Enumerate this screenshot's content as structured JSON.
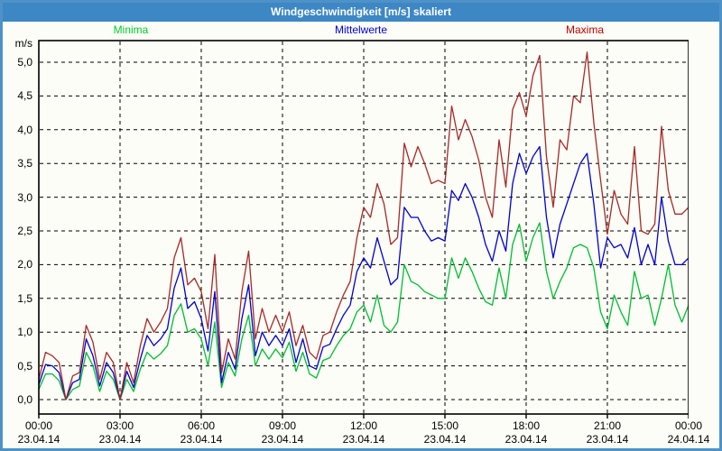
{
  "window": {
    "title": "Windgeschwindigkeit [m/s] skaliert"
  },
  "legend": [
    {
      "label": "Minima",
      "color": "#00cc33"
    },
    {
      "label": "Mittelwerte",
      "color": "#0000e6"
    },
    {
      "label": "Maxima",
      "color": "#c00000"
    }
  ],
  "chart_data": {
    "type": "line",
    "title": "Windgeschwindigkeit [m/s] skaliert",
    "ylabel": "m/s",
    "ylim": [
      0.0,
      5.0
    ],
    "y_tick_step": 0.5,
    "y_tick_labels": [
      "0,0",
      "0,5",
      "1,0",
      "1,5",
      "2,0",
      "2,5",
      "3,0",
      "3,5",
      "4,0",
      "4,5",
      "5,0"
    ],
    "grid": "dashed",
    "legend_position": "top",
    "x_hours_range": [
      0,
      24
    ],
    "sample_interval_minutes": 15,
    "x_ticks": [
      {
        "hour": 0,
        "time": "00:00",
        "date": "23.04.14"
      },
      {
        "hour": 3,
        "time": "03:00",
        "date": "23.04.14"
      },
      {
        "hour": 6,
        "time": "06:00",
        "date": "23.04.14"
      },
      {
        "hour": 9,
        "time": "09:00",
        "date": "23.04.14"
      },
      {
        "hour": 12,
        "time": "12:00",
        "date": "23.04.14"
      },
      {
        "hour": 15,
        "time": "15:00",
        "date": "23.04.14"
      },
      {
        "hour": 18,
        "time": "18:00",
        "date": "23.04.14"
      },
      {
        "hour": 21,
        "time": "21:00",
        "date": "23.04.14"
      },
      {
        "hour": 24,
        "time": "00:00",
        "date": "24.04.14"
      }
    ],
    "series": [
      {
        "name": "Minima",
        "color": "#00bd32",
        "values": [
          0.15,
          0.38,
          0.38,
          0.28,
          0.0,
          0.15,
          0.2,
          0.7,
          0.5,
          0.12,
          0.42,
          0.3,
          0.0,
          0.3,
          0.12,
          0.45,
          0.7,
          0.6,
          0.68,
          0.8,
          1.25,
          1.42,
          1.0,
          1.05,
          0.9,
          0.5,
          1.15,
          0.18,
          0.55,
          0.35,
          0.9,
          1.25,
          0.5,
          0.75,
          0.6,
          0.75,
          0.62,
          0.85,
          0.42,
          0.7,
          0.38,
          0.32,
          0.58,
          0.62,
          0.8,
          0.95,
          1.05,
          1.3,
          1.4,
          1.15,
          1.55,
          1.1,
          1.0,
          1.15,
          2.0,
          1.75,
          1.7,
          1.6,
          1.55,
          1.5,
          1.5,
          2.1,
          1.8,
          2.1,
          1.9,
          1.65,
          1.45,
          1.4,
          1.95,
          1.5,
          2.3,
          2.6,
          2.05,
          2.4,
          2.62,
          1.9,
          1.5,
          1.75,
          1.95,
          2.25,
          2.3,
          2.25,
          1.95,
          1.3,
          1.05,
          1.55,
          1.3,
          1.1,
          1.9,
          1.5,
          1.55,
          1.1,
          1.5,
          2.0,
          1.4,
          1.15,
          1.4
        ]
      },
      {
        "name": "Mittelwerte",
        "color": "#0000cd",
        "values": [
          0.22,
          0.52,
          0.5,
          0.4,
          0.0,
          0.25,
          0.3,
          0.9,
          0.65,
          0.2,
          0.55,
          0.4,
          0.0,
          0.42,
          0.18,
          0.6,
          0.95,
          0.8,
          0.9,
          1.05,
          1.65,
          1.95,
          1.35,
          1.45,
          1.2,
          0.72,
          1.6,
          0.25,
          0.7,
          0.45,
          1.2,
          1.7,
          0.65,
          1.0,
          0.8,
          0.95,
          0.8,
          1.05,
          0.55,
          0.9,
          0.5,
          0.45,
          0.78,
          0.82,
          1.05,
          1.25,
          1.4,
          1.9,
          2.1,
          1.95,
          2.4,
          2.05,
          1.7,
          1.8,
          2.85,
          2.7,
          2.7,
          2.5,
          2.35,
          2.4,
          2.35,
          3.1,
          2.95,
          3.2,
          3.0,
          2.7,
          2.3,
          2.05,
          2.5,
          2.2,
          3.2,
          3.65,
          3.35,
          3.6,
          3.75,
          2.7,
          2.1,
          2.6,
          2.9,
          3.2,
          3.5,
          3.65,
          2.9,
          1.95,
          2.4,
          2.25,
          2.3,
          2.1,
          2.55,
          2.0,
          2.3,
          2.0,
          3.0,
          2.35,
          2.0,
          2.0,
          2.1
        ]
      },
      {
        "name": "Maxima",
        "color": "#a62929",
        "values": [
          0.3,
          0.7,
          0.65,
          0.55,
          0.0,
          0.35,
          0.4,
          1.1,
          0.85,
          0.3,
          0.7,
          0.55,
          0.0,
          0.55,
          0.25,
          0.8,
          1.2,
          1.0,
          1.15,
          1.35,
          2.1,
          2.4,
          1.7,
          1.8,
          1.6,
          1.05,
          2.15,
          0.4,
          0.9,
          0.6,
          1.6,
          2.2,
          0.9,
          1.35,
          1.0,
          1.25,
          1.0,
          1.3,
          0.8,
          1.1,
          0.7,
          0.6,
          0.95,
          1.0,
          1.3,
          1.55,
          1.75,
          2.4,
          2.85,
          2.7,
          3.2,
          2.9,
          2.3,
          2.4,
          3.8,
          3.45,
          3.75,
          3.5,
          3.2,
          3.25,
          3.2,
          4.35,
          3.85,
          4.15,
          3.9,
          3.55,
          3.0,
          2.7,
          3.85,
          3.15,
          4.3,
          4.55,
          4.2,
          4.8,
          5.1,
          3.6,
          2.85,
          3.85,
          3.7,
          4.5,
          4.4,
          5.15,
          4.1,
          3.25,
          2.45,
          3.1,
          2.75,
          2.6,
          3.75,
          2.5,
          2.45,
          2.6,
          4.05,
          3.1,
          2.75,
          2.75,
          2.85
        ]
      }
    ]
  }
}
